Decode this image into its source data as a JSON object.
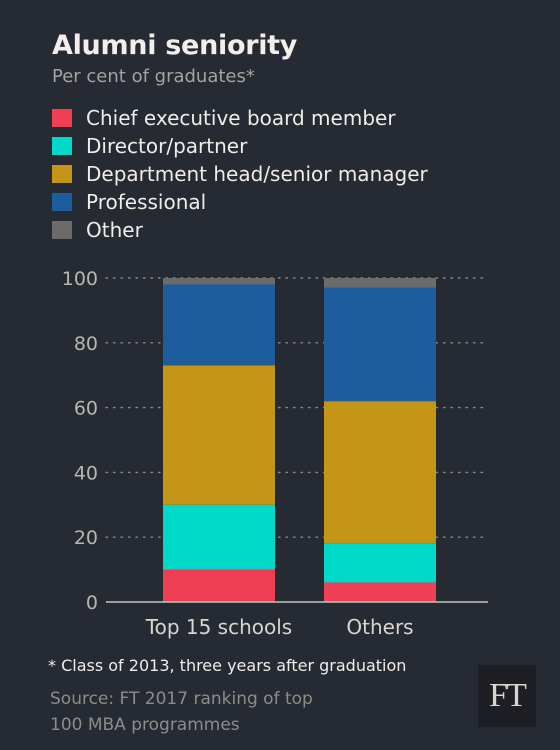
{
  "header": {
    "title": "Alumni seniority",
    "subtitle": "Per cent of graduates*"
  },
  "legend": [
    {
      "label": "Chief executive board member",
      "color": "#ee3f55"
    },
    {
      "label": "Director/partner",
      "color": "#00d9c7"
    },
    {
      "label": "Department head/senior manager",
      "color": "#c49516"
    },
    {
      "label": "Professional",
      "color": "#1d5d9e"
    },
    {
      "label": "Other",
      "color": "#6b6b6b"
    }
  ],
  "chart_data": {
    "type": "bar",
    "stacked": true,
    "title": "Alumni seniority",
    "subtitle": "Per cent of graduates*",
    "categories": [
      "Top 15 schools",
      "Others"
    ],
    "series": [
      {
        "name": "Chief executive board member",
        "values": [
          10,
          6
        ],
        "color": "#ee3f55"
      },
      {
        "name": "Director/partner",
        "values": [
          20,
          12
        ],
        "color": "#00d9c7"
      },
      {
        "name": "Department head/senior manager",
        "values": [
          43,
          44
        ],
        "color": "#c49516"
      },
      {
        "name": "Professional",
        "values": [
          25,
          35
        ],
        "color": "#1d5d9e"
      },
      {
        "name": "Other",
        "values": [
          2,
          3
        ],
        "color": "#6b6b6b"
      }
    ],
    "yticks": [
      0,
      20,
      40,
      60,
      80,
      100
    ],
    "ylim": [
      0,
      100
    ],
    "grid": true,
    "legend_position": "top-left"
  },
  "footer": {
    "footnote": "* Class of 2013, three years after graduation",
    "source_line1": "Source: FT 2017 ranking of top",
    "source_line2": "100 MBA programmes",
    "logo": "FT"
  }
}
